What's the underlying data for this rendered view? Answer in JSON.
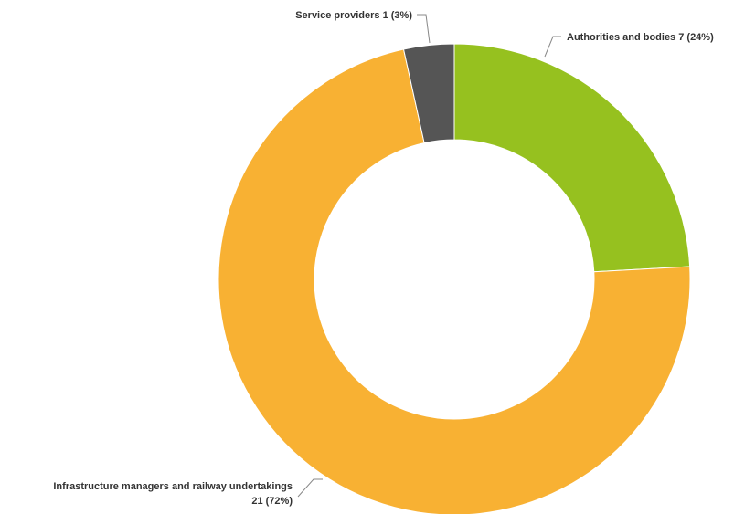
{
  "chart_data": {
    "type": "pie",
    "donut": true,
    "slices": [
      {
        "name": "Authorities and bodies",
        "value": 7,
        "percent": 24,
        "color": "#96c11f",
        "label_line1": "Authorities and bodies 7 (24%)",
        "label_line2": ""
      },
      {
        "name": "Infrastructure managers and railway undertakings",
        "value": 21,
        "percent": 72,
        "color": "#f8b133",
        "label_line1": "Infrastructure managers and railway undertakings",
        "label_line2": "21 (72%)"
      },
      {
        "name": "Service providers",
        "value": 1,
        "percent": 3,
        "color": "#555555",
        "label_line1": "Service providers 1 (3%)",
        "label_line2": ""
      }
    ]
  }
}
